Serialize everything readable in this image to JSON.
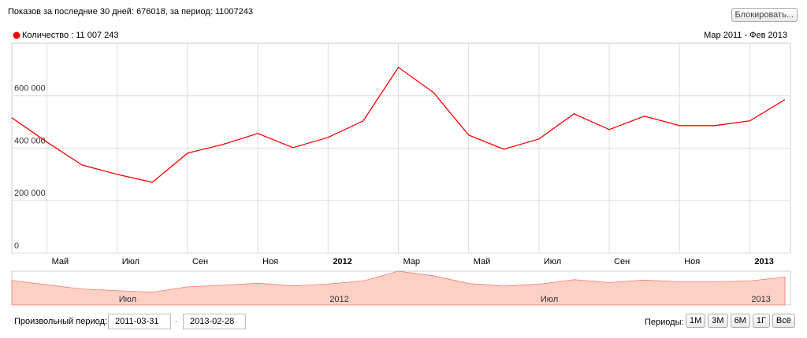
{
  "header": {
    "stats": "Показов за последние 30 дней: 676018, за период: 11007243",
    "block_button": "Блокировать..."
  },
  "chart_data": {
    "type": "line",
    "range_label": "Мар 2011 - Фев 2013",
    "categories": [
      null,
      "Май",
      null,
      "Июл",
      null,
      "Сен",
      null,
      "Ноя",
      null,
      "2012",
      null,
      "Мар",
      null,
      "Май",
      null,
      "Июл",
      null,
      "Сен",
      null,
      "Ноя",
      null,
      "2013",
      null
    ],
    "series": [
      {
        "name": "Количество : 11 007 243",
        "color": "#ff0000",
        "values": [
          516000,
          423000,
          336000,
          300000,
          270000,
          381000,
          414000,
          456000,
          402000,
          441000,
          504000,
          708000,
          612000,
          450000,
          396000,
          435000,
          531000,
          471000,
          522000,
          486000,
          486000,
          504000,
          585000
        ]
      }
    ],
    "ylim": [
      0,
      800000
    ],
    "yticks": [
      0,
      {
        "value": 200000,
        "label": "200 000"
      },
      {
        "value": 400000,
        "label": "400 000"
      },
      {
        "value": 600000,
        "label": "600 000"
      }
    ],
    "grid": true,
    "navigator": {
      "color": "#fdd0c6",
      "categories": [
        null,
        null,
        null,
        "Июл",
        null,
        null,
        null,
        null,
        null,
        "2012",
        null,
        null,
        null,
        null,
        null,
        "Июл",
        null,
        null,
        null,
        null,
        null,
        "2013",
        null
      ]
    }
  },
  "controls": {
    "custom_period": "Произвольный период:",
    "from": "2011-03-31",
    "separator": "-",
    "to": "2013-02-28",
    "periods_label": "Периоды:",
    "periods": [
      "1М",
      "3М",
      "6М",
      "1Г",
      "Всё"
    ]
  }
}
